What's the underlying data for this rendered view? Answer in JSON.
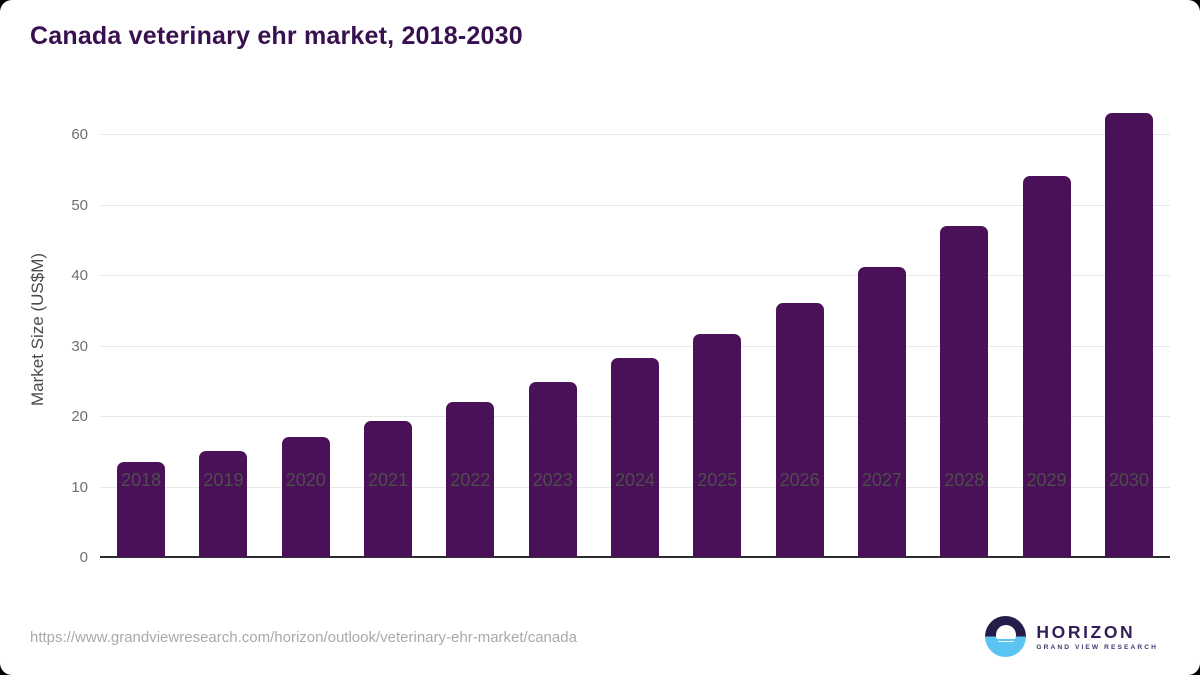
{
  "page": {
    "title": "Canada veterinary ehr market, 2018-2030",
    "source_url": "https://www.grandviewresearch.com/horizon/outlook/veterinary-ehr-market/canada"
  },
  "chart_data": {
    "type": "bar",
    "title": "Canada veterinary ehr market, 2018-2030",
    "categories": [
      "2018",
      "2019",
      "2020",
      "2021",
      "2022",
      "2023",
      "2024",
      "2025",
      "2026",
      "2027",
      "2028",
      "2029",
      "2030"
    ],
    "values": [
      13.5,
      15.0,
      17.0,
      19.3,
      22.0,
      24.8,
      28.2,
      31.7,
      36.0,
      41.1,
      47.0,
      54.1,
      63.0
    ],
    "xlabel": "",
    "ylabel": "Market Size (US$M)",
    "ylim": [
      0,
      65
    ],
    "yticks": [
      0,
      10,
      20,
      30,
      40,
      50,
      60
    ],
    "grid": "horizontal",
    "legend": "none",
    "bar_color": "#4a1158"
  },
  "colors": {
    "title": "#38104f",
    "bar": "#4a1158",
    "logo_dark": "#261c49",
    "logo_blue": "#5ac4f2",
    "page_background": "#ffffff",
    "outer_background": "#000000"
  },
  "branding": {
    "name": "HORIZON",
    "subtitle": "GRAND VIEW RESEARCH"
  }
}
